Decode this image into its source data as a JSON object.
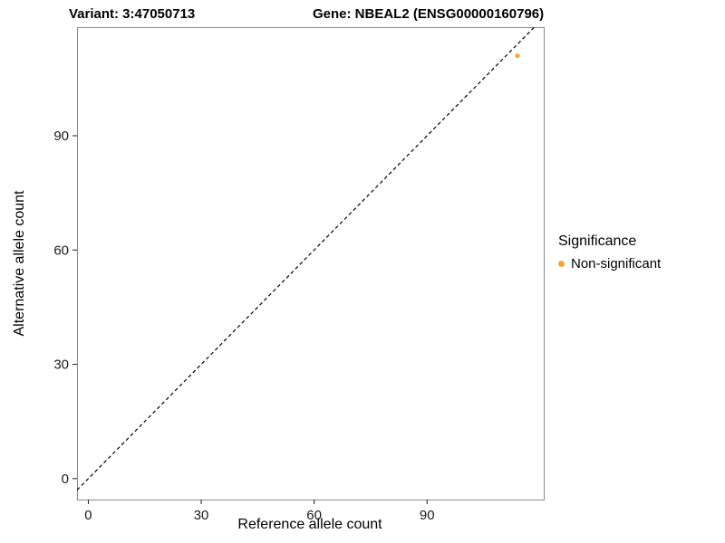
{
  "chart_data": {
    "type": "scatter",
    "title_left": "Variant: 3:47050713",
    "title_right": "Gene: NBEAL2 (ENSG00000160796)",
    "xlabel": "Reference allele count",
    "ylabel": "Alternative allele count",
    "xlim": [
      -3,
      121
    ],
    "ylim": [
      -5.5,
      118.5
    ],
    "xticks": [
      0,
      30,
      60,
      90
    ],
    "yticks": [
      0,
      30,
      60,
      90
    ],
    "grid": false,
    "panel_border_color": "#8a8a8a",
    "tick_color": "#1a1a1a",
    "series": [
      {
        "name": "Non-significant",
        "color": "#F8A43C",
        "points": [
          {
            "x": 114,
            "y": 111
          }
        ]
      }
    ],
    "reference_line": {
      "type": "identity",
      "style": "dashed",
      "color": "#000000"
    },
    "legend": {
      "title": "Significance",
      "position": "right",
      "items": [
        {
          "label": "Non-significant",
          "color": "#F8A43C"
        }
      ]
    }
  }
}
